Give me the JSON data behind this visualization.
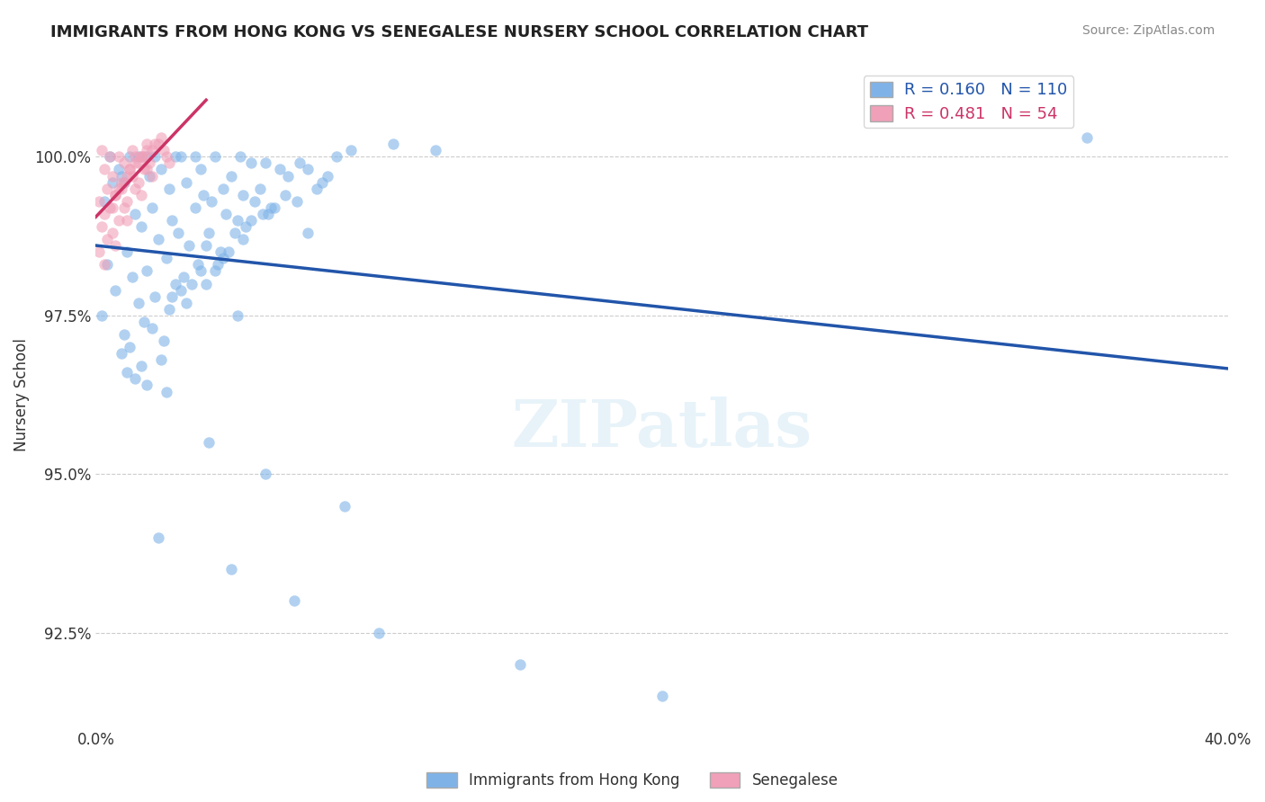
{
  "title": "IMMIGRANTS FROM HONG KONG VS SENEGALESE NURSERY SCHOOL CORRELATION CHART",
  "source": "Source: ZipAtlas.com",
  "xlabel_bottom": "",
  "ylabel": "Nursery School",
  "xlim": [
    0.0,
    40.0
  ],
  "ylim": [
    91.0,
    101.5
  ],
  "yticks": [
    92.5,
    95.0,
    97.5,
    100.0
  ],
  "ytick_labels": [
    "92.5%",
    "95.0%",
    "97.5%",
    "100.0%"
  ],
  "xticks": [
    0.0,
    40.0
  ],
  "xtick_labels": [
    "0.0%",
    "40.0%"
  ],
  "legend_entries": [
    {
      "label": "R = 0.160   N = 110",
      "color": "#7fb3e8"
    },
    {
      "label": "R = 0.481   N = 54",
      "color": "#f0a0b8"
    }
  ],
  "bottom_legend": [
    {
      "label": "Immigrants from Hong Kong",
      "color": "#7fb3e8"
    },
    {
      "label": "Senegalese",
      "color": "#f0a0b8"
    }
  ],
  "watermark": "ZIPatlas",
  "blue_R": 0.16,
  "pink_R": 0.481,
  "blue_N": 110,
  "pink_N": 54,
  "background_color": "#ffffff",
  "grid_color": "#cccccc",
  "blue_color": "#7fb3e8",
  "pink_color": "#f0a0b8",
  "blue_line_color": "#2255aa",
  "pink_line_color": "#cc3366",
  "scatter_alpha": 0.6,
  "scatter_size": 80,
  "blue_points_x": [
    1.2,
    2.1,
    3.5,
    1.8,
    4.2,
    2.8,
    5.1,
    0.5,
    1.5,
    3.0,
    2.3,
    4.8,
    1.0,
    2.6,
    3.8,
    5.5,
    0.8,
    1.9,
    3.2,
    4.5,
    6.0,
    0.3,
    2.0,
    3.7,
    5.2,
    1.4,
    2.7,
    4.1,
    0.9,
    3.5,
    6.5,
    1.6,
    2.9,
    4.6,
    0.6,
    2.2,
    3.9,
    5.8,
    1.1,
    2.5,
    4.0,
    7.2,
    0.4,
    1.8,
    3.3,
    5.0,
    1.3,
    2.8,
    4.4,
    6.1,
    0.7,
    2.1,
    3.6,
    5.3,
    1.5,
    2.6,
    4.2,
    7.5,
    0.2,
    1.7,
    3.1,
    4.9,
    6.8,
    2.0,
    3.4,
    5.6,
    1.0,
    2.4,
    4.7,
    8.0,
    1.2,
    3.0,
    5.2,
    7.8,
    0.9,
    2.3,
    4.5,
    6.3,
    1.6,
    3.7,
    5.9,
    9.0,
    1.1,
    2.7,
    4.3,
    6.7,
    8.5,
    1.4,
    3.2,
    5.5,
    7.1,
    10.5,
    1.8,
    3.9,
    6.2,
    8.2,
    12.0,
    2.5,
    5.0,
    7.5,
    4.0,
    6.0,
    8.8,
    2.2,
    4.8,
    7.0,
    10.0,
    15.0,
    20.0,
    35.0
  ],
  "blue_points_y": [
    100.0,
    100.0,
    100.0,
    100.0,
    100.0,
    100.0,
    100.0,
    100.0,
    100.0,
    100.0,
    99.8,
    99.7,
    99.6,
    99.5,
    99.4,
    99.9,
    99.8,
    99.7,
    99.6,
    99.5,
    99.9,
    99.3,
    99.2,
    99.8,
    99.4,
    99.1,
    99.0,
    99.3,
    99.7,
    99.2,
    99.8,
    98.9,
    98.8,
    99.1,
    99.6,
    98.7,
    98.6,
    99.5,
    98.5,
    98.4,
    98.8,
    99.9,
    98.3,
    98.2,
    98.6,
    99.0,
    98.1,
    98.0,
    98.5,
    99.1,
    97.9,
    97.8,
    98.3,
    98.9,
    97.7,
    97.6,
    98.2,
    99.8,
    97.5,
    97.4,
    98.1,
    98.8,
    99.7,
    97.3,
    98.0,
    99.3,
    97.2,
    97.1,
    98.5,
    99.6,
    97.0,
    97.9,
    98.7,
    99.5,
    96.9,
    96.8,
    98.4,
    99.2,
    96.7,
    98.2,
    99.1,
    100.1,
    96.6,
    97.8,
    98.3,
    99.4,
    100.0,
    96.5,
    97.7,
    99.0,
    99.3,
    100.2,
    96.4,
    98.0,
    99.2,
    99.7,
    100.1,
    96.3,
    97.5,
    98.8,
    95.5,
    95.0,
    94.5,
    94.0,
    93.5,
    93.0,
    92.5,
    92.0,
    91.5,
    100.3
  ],
  "pink_points_x": [
    0.2,
    0.5,
    0.8,
    1.0,
    1.3,
    1.6,
    0.3,
    0.6,
    0.9,
    1.2,
    1.5,
    1.8,
    0.4,
    0.7,
    1.1,
    1.4,
    1.7,
    2.0,
    0.1,
    0.5,
    0.8,
    1.2,
    1.6,
    2.1,
    0.3,
    0.7,
    1.0,
    1.4,
    1.8,
    2.3,
    0.2,
    0.6,
    0.9,
    1.3,
    1.7,
    2.2,
    0.4,
    0.8,
    1.1,
    1.5,
    1.9,
    2.4,
    0.1,
    0.6,
    1.0,
    1.4,
    1.8,
    2.5,
    0.3,
    0.7,
    1.1,
    1.6,
    2.0,
    2.6
  ],
  "pink_points_y": [
    100.1,
    100.0,
    100.0,
    99.9,
    100.1,
    100.0,
    99.8,
    99.7,
    99.6,
    99.8,
    99.9,
    100.2,
    99.5,
    99.4,
    99.7,
    100.0,
    99.8,
    100.1,
    99.3,
    99.2,
    99.5,
    99.8,
    100.0,
    100.2,
    99.1,
    99.4,
    99.6,
    99.9,
    100.1,
    100.3,
    98.9,
    99.2,
    99.5,
    99.7,
    100.0,
    100.2,
    98.7,
    99.0,
    99.3,
    99.6,
    99.9,
    100.1,
    98.5,
    98.8,
    99.2,
    99.5,
    99.8,
    100.0,
    98.3,
    98.6,
    99.0,
    99.4,
    99.7,
    99.9
  ]
}
